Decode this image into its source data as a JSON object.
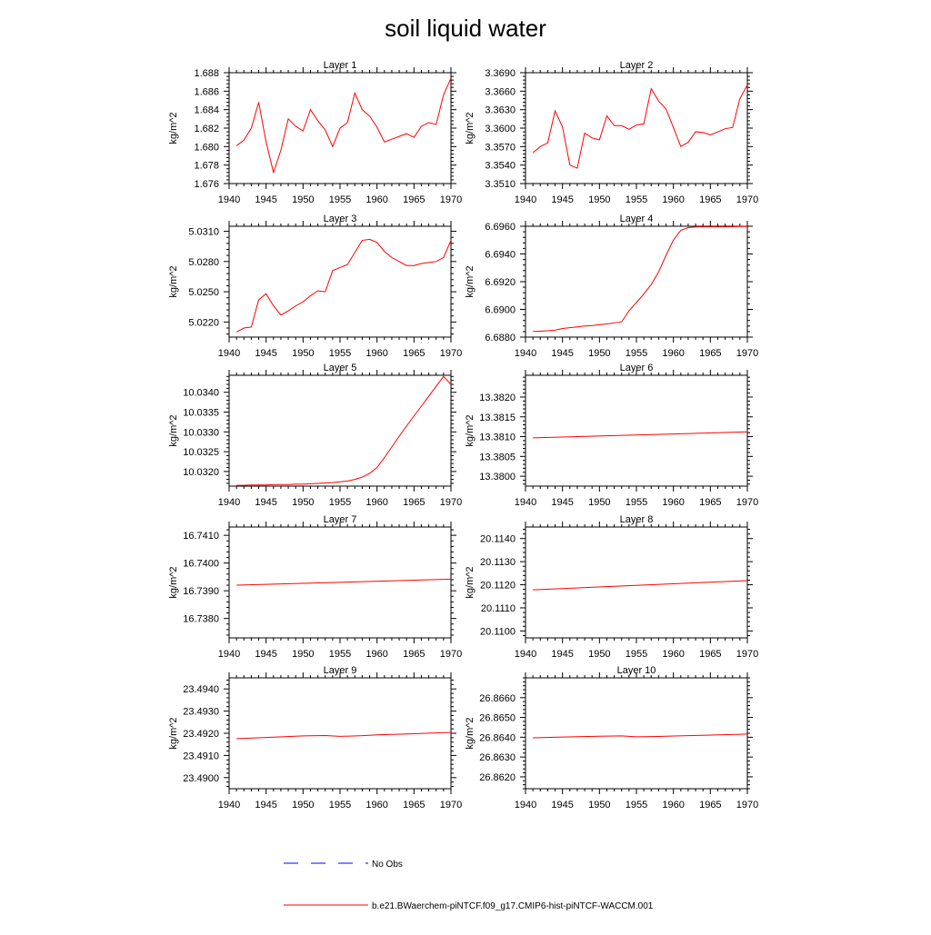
{
  "title": "soil liquid water",
  "colors": {
    "model": "#ff0000",
    "obs": "#0000ff",
    "axis": "#000000"
  },
  "legend": {
    "obs_label": "No Obs",
    "model_label": "b.e21.BWaerchem-piNTCF.f09_g17.CMIP6-hist-piNTCF-WACCM.001"
  },
  "chart_data": [
    {
      "type": "line",
      "title": "Layer 1",
      "ylabel": "kg/m^2",
      "xlim": [
        1940,
        1970
      ],
      "ylim": [
        1.676,
        1.688
      ],
      "xticks": [
        "1940",
        "1945",
        "1950",
        "1955",
        "1960",
        "1965",
        "1970"
      ],
      "yticks": [
        "1.676",
        "1.678",
        "1.680",
        "1.682",
        "1.684",
        "1.686",
        "1.688"
      ],
      "x": [
        1941,
        1942,
        1943,
        1944,
        1945,
        1946,
        1947,
        1948,
        1949,
        1950,
        1951,
        1952,
        1953,
        1954,
        1955,
        1956,
        1957,
        1958,
        1959,
        1960,
        1961,
        1962,
        1963,
        1964,
        1965,
        1966,
        1967,
        1968,
        1969,
        1970
      ],
      "series": [
        {
          "values": [
            1.6801,
            1.6807,
            1.682,
            1.6848,
            1.6805,
            1.6772,
            1.6796,
            1.683,
            1.6822,
            1.6817,
            1.684,
            1.6828,
            1.6818,
            1.68,
            1.682,
            1.6826,
            1.6858,
            1.684,
            1.6833,
            1.6821,
            1.6805,
            1.6808,
            1.6811,
            1.6814,
            1.681,
            1.6822,
            1.6826,
            1.6824,
            1.6856,
            1.6874
          ]
        }
      ]
    },
    {
      "type": "line",
      "title": "Layer 2",
      "ylabel": "kg/m^2",
      "xlim": [
        1940,
        1970
      ],
      "ylim": [
        3.351,
        3.369
      ],
      "xticks": [
        "1940",
        "1945",
        "1950",
        "1955",
        "1960",
        "1965",
        "1970"
      ],
      "yticks": [
        "3.3510",
        "3.3540",
        "3.3570",
        "3.3600",
        "3.3630",
        "3.3660",
        "3.3690"
      ],
      "x": [
        1941,
        1942,
        1943,
        1944,
        1945,
        1946,
        1947,
        1948,
        1949,
        1950,
        1951,
        1952,
        1953,
        1954,
        1955,
        1956,
        1957,
        1958,
        1959,
        1960,
        1961,
        1962,
        1963,
        1964,
        1965,
        1966,
        1967,
        1968,
        1969,
        1970
      ],
      "series": [
        {
          "values": [
            3.356,
            3.357,
            3.3576,
            3.3628,
            3.3602,
            3.354,
            3.3535,
            3.3592,
            3.3584,
            3.3581,
            3.362,
            3.3604,
            3.3604,
            3.3598,
            3.3605,
            3.3607,
            3.3664,
            3.3644,
            3.3631,
            3.3601,
            3.357,
            3.3577,
            3.3594,
            3.3593,
            3.3589,
            3.3594,
            3.3599,
            3.3601,
            3.3648,
            3.367
          ]
        }
      ]
    },
    {
      "type": "line",
      "title": "Layer 3",
      "ylabel": "kg/m^2",
      "xlim": [
        1940,
        1970
      ],
      "ylim": [
        5.0205,
        5.0315
      ],
      "xticks": [
        "1940",
        "1945",
        "1950",
        "1955",
        "1960",
        "1965",
        "1970"
      ],
      "yticks": [
        "5.0220",
        "5.0250",
        "5.0280",
        "5.0310"
      ],
      "x": [
        1941,
        1942,
        1943,
        1944,
        1945,
        1946,
        1947,
        1948,
        1949,
        1950,
        1951,
        1952,
        1953,
        1954,
        1955,
        1956,
        1957,
        1958,
        1959,
        1960,
        1961,
        1962,
        1963,
        1964,
        1965,
        1966,
        1967,
        1968,
        1969,
        1970
      ],
      "series": [
        {
          "values": [
            5.021,
            5.0214,
            5.0215,
            5.0242,
            5.0248,
            5.0236,
            5.0227,
            5.0231,
            5.0236,
            5.024,
            5.0246,
            5.0251,
            5.025,
            5.0271,
            5.0274,
            5.0277,
            5.0289,
            5.0301,
            5.0302,
            5.0299,
            5.029,
            5.0284,
            5.028,
            5.0276,
            5.0276,
            5.0278,
            5.0279,
            5.028,
            5.0284,
            5.0301
          ]
        }
      ]
    },
    {
      "type": "line",
      "title": "Layer 4",
      "ylabel": "kg/m^2",
      "xlim": [
        1940,
        1970
      ],
      "ylim": [
        6.688,
        6.696
      ],
      "xticks": [
        "1940",
        "1945",
        "1950",
        "1955",
        "1960",
        "1965",
        "1970"
      ],
      "yticks": [
        "6.6880",
        "6.6900",
        "6.6920",
        "6.6940",
        "6.6960"
      ],
      "x": [
        1941,
        1942,
        1943,
        1944,
        1945,
        1946,
        1947,
        1948,
        1949,
        1950,
        1951,
        1952,
        1953,
        1954,
        1955,
        1956,
        1957,
        1958,
        1959,
        1960,
        1961,
        1962,
        1963,
        1964,
        1965,
        1966,
        1967,
        1968,
        1969,
        1970
      ],
      "series": [
        {
          "values": [
            6.68841,
            6.68843,
            6.68846,
            6.6885,
            6.68862,
            6.68868,
            6.68874,
            6.6888,
            6.68883,
            6.6889,
            6.68895,
            6.68902,
            6.6891,
            6.6899,
            6.6905,
            6.6911,
            6.6918,
            6.6927,
            6.6939,
            6.695,
            6.6957,
            6.6959,
            6.69595,
            6.69596,
            6.69596,
            6.69596,
            6.69596,
            6.69597,
            6.69598,
            6.69598
          ]
        }
      ]
    },
    {
      "type": "line",
      "title": "Layer 5",
      "ylabel": "kg/m^2",
      "xlim": [
        1940,
        1970
      ],
      "ylim": [
        10.03163,
        10.03443
      ],
      "xticks": [
        "1940",
        "1945",
        "1950",
        "1955",
        "1960",
        "1965",
        "1970"
      ],
      "yticks": [
        "10.0320",
        "10.0325",
        "10.0330",
        "10.0335",
        "10.0340"
      ],
      "x": [
        1941,
        1942,
        1943,
        1944,
        1945,
        1946,
        1947,
        1948,
        1949,
        1950,
        1951,
        1952,
        1953,
        1954,
        1955,
        1956,
        1957,
        1958,
        1959,
        1960,
        1961,
        1962,
        1963,
        1964,
        1965,
        1966,
        1967,
        1968,
        1969,
        1970
      ],
      "series": [
        {
          "values": [
            10.03165,
            10.03165,
            10.03166,
            10.03166,
            10.03166,
            10.03167,
            10.03167,
            10.03167,
            10.03168,
            10.03168,
            10.03169,
            10.0317,
            10.03171,
            10.03172,
            10.03174,
            10.03176,
            10.0318,
            10.03186,
            10.03195,
            10.0321,
            10.03235,
            10.03262,
            10.03289,
            10.03315,
            10.0334,
            10.03365,
            10.0339,
            10.03415,
            10.0344,
            10.0342
          ]
        }
      ]
    },
    {
      "type": "line",
      "title": "Layer 6",
      "ylabel": "kg/m^2",
      "xlim": [
        1940,
        1970
      ],
      "ylim": [
        13.37975,
        13.38255
      ],
      "xticks": [
        "1940",
        "1945",
        "1950",
        "1955",
        "1960",
        "1965",
        "1970"
      ],
      "yticks": [
        "13.3800",
        "13.3805",
        "13.3810",
        "13.3815",
        "13.3820"
      ],
      "x": [
        1941,
        1970
      ],
      "series": [
        {
          "values": [
            13.38097,
            13.38112
          ]
        }
      ]
    },
    {
      "type": "line",
      "title": "Layer 7",
      "ylabel": "kg/m^2",
      "xlim": [
        1940,
        1970
      ],
      "ylim": [
        16.7373,
        16.7413
      ],
      "xticks": [
        "1940",
        "1945",
        "1950",
        "1955",
        "1960",
        "1965",
        "1970"
      ],
      "yticks": [
        "16.7380",
        "16.7390",
        "16.7400",
        "16.7410"
      ],
      "x": [
        1941,
        1970
      ],
      "series": [
        {
          "values": [
            16.7392,
            16.73942
          ]
        }
      ]
    },
    {
      "type": "line",
      "title": "Layer 8",
      "ylabel": "kg/m^2",
      "xlim": [
        1940,
        1970
      ],
      "ylim": [
        20.1097,
        20.1145
      ],
      "xticks": [
        "1940",
        "1945",
        "1950",
        "1955",
        "1960",
        "1965",
        "1970"
      ],
      "yticks": [
        "20.1100",
        "20.1110",
        "20.1120",
        "20.1130",
        "20.1140"
      ],
      "x": [
        1941,
        1970
      ],
      "series": [
        {
          "values": [
            20.11178,
            20.11218
          ]
        }
      ]
    },
    {
      "type": "line",
      "title": "Layer 9",
      "ylabel": "kg/m^2",
      "xlim": [
        1940,
        1970
      ],
      "ylim": [
        23.4895,
        23.4945
      ],
      "xticks": [
        "1940",
        "1945",
        "1950",
        "1955",
        "1960",
        "1965",
        "1970"
      ],
      "yticks": [
        "23.4900",
        "23.4910",
        "23.4920",
        "23.4930",
        "23.4940"
      ],
      "x": [
        1941,
        1945,
        1950,
        1953,
        1955,
        1958,
        1960,
        1965,
        1970
      ],
      "series": [
        {
          "values": [
            23.49176,
            23.49181,
            23.49188,
            23.4919,
            23.49186,
            23.49189,
            23.49193,
            23.49198,
            23.49204
          ]
        }
      ]
    },
    {
      "type": "line",
      "title": "Layer 10",
      "ylabel": "kg/m^2",
      "xlim": [
        1940,
        1970
      ],
      "ylim": [
        26.8614,
        26.867
      ],
      "xticks": [
        "1940",
        "1945",
        "1950",
        "1955",
        "1960",
        "1965",
        "1970"
      ],
      "yticks": [
        "26.8620",
        "26.8630",
        "26.8640",
        "26.8650",
        "26.8660"
      ],
      "x": [
        1941,
        1945,
        1950,
        1953,
        1955,
        1958,
        1960,
        1965,
        1970
      ],
      "series": [
        {
          "values": [
            26.86397,
            26.86401,
            26.86405,
            26.86407,
            26.86402,
            26.86404,
            26.86406,
            26.86411,
            26.86416
          ]
        }
      ]
    }
  ]
}
